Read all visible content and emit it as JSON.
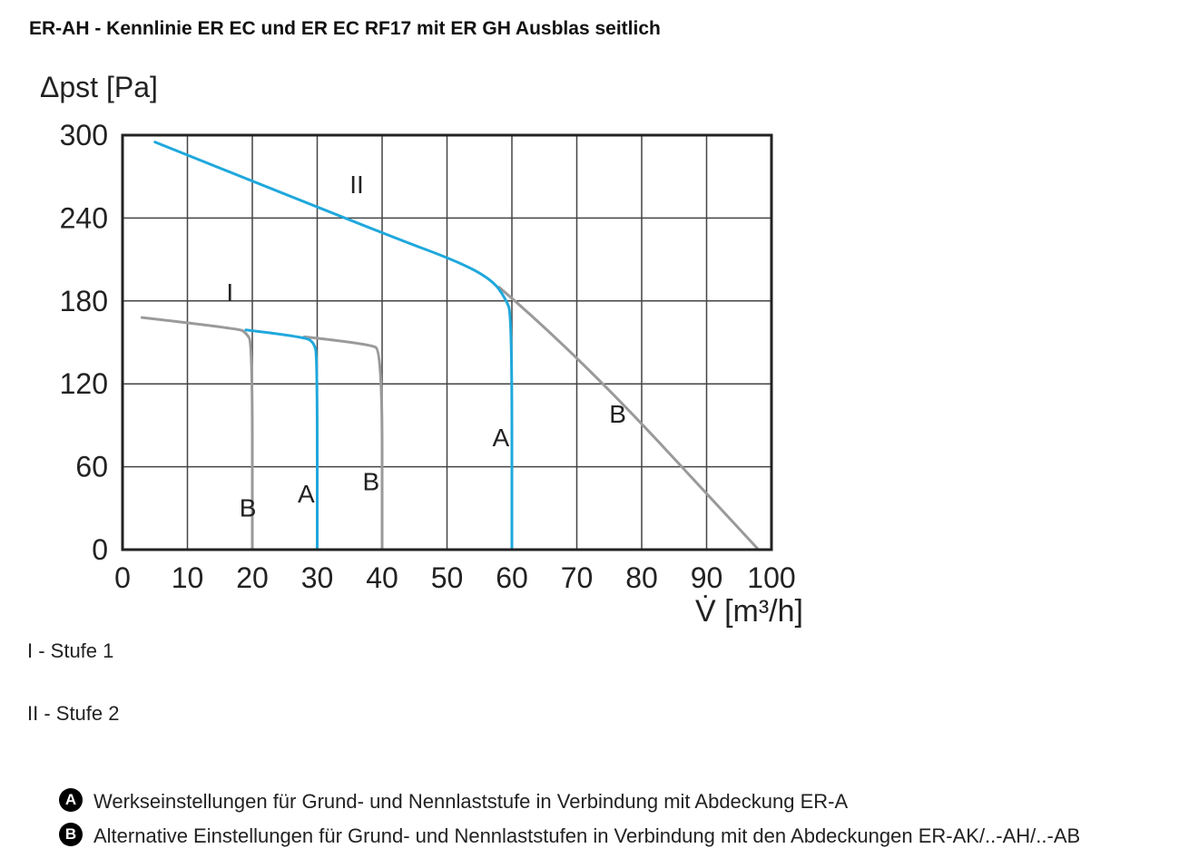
{
  "title": "ER-AH - Kennlinie ER EC und ER EC RF17 mit ER GH Ausblas seitlich",
  "chart_data": {
    "type": "line",
    "ylabel": "Δpst [Pa]",
    "xlabel": "V̇ [m³/h]",
    "xlim": [
      0,
      100
    ],
    "ylim": [
      0,
      300
    ],
    "xticks": [
      "0",
      "10",
      "20",
      "30",
      "40",
      "50",
      "60",
      "70",
      "80",
      "90",
      "100"
    ],
    "yticks": [
      "0",
      "60",
      "120",
      "180",
      "240",
      "300"
    ],
    "grid": true,
    "colors": {
      "A": "#1fa8dc",
      "B": "#9a9a9a"
    },
    "series": [
      {
        "curve": "I",
        "setting": "B",
        "color": "#9a9a9a",
        "points": [
          [
            3,
            168
          ],
          [
            18,
            160
          ],
          [
            19,
            157
          ],
          [
            20,
            150
          ],
          [
            20,
            0
          ]
        ]
      },
      {
        "curve": "I",
        "setting": "A",
        "color": "#1fa8dc",
        "points": [
          [
            19,
            159
          ],
          [
            28,
            154
          ],
          [
            29.5,
            150
          ],
          [
            30,
            140
          ],
          [
            30,
            0
          ]
        ]
      },
      {
        "curve": "I",
        "setting": "B",
        "color": "#9a9a9a",
        "points": [
          [
            28,
            154
          ],
          [
            38,
            149
          ],
          [
            40,
            144
          ],
          [
            40,
            0
          ]
        ]
      },
      {
        "curve": "II",
        "setting": "A",
        "color": "#1fa8dc",
        "points": [
          [
            5,
            295
          ],
          [
            40,
            229
          ],
          [
            52,
            208
          ],
          [
            57,
            195
          ],
          [
            59,
            182
          ],
          [
            60,
            170
          ],
          [
            60,
            0
          ]
        ]
      },
      {
        "curve": "II",
        "setting": "B",
        "color": "#9a9a9a",
        "points": [
          [
            58,
            190
          ],
          [
            70,
            142
          ],
          [
            98,
            0
          ]
        ]
      }
    ],
    "curve_labels": [
      {
        "text": "II",
        "x": 35,
        "y": 258
      },
      {
        "text": "I",
        "x": 16,
        "y": 180
      },
      {
        "text": "B",
        "x": 18,
        "y": 24
      },
      {
        "text": "A",
        "x": 27,
        "y": 34
      },
      {
        "text": "B",
        "x": 37,
        "y": 43
      },
      {
        "text": "A",
        "x": 57,
        "y": 75
      },
      {
        "text": "B",
        "x": 75,
        "y": 92
      }
    ]
  },
  "legend": {
    "stufe1": "I - Stufe 1",
    "stufe2": "II - Stufe 2"
  },
  "notes": [
    {
      "badge": "A",
      "text": "Werkseinstellungen für Grund- und Nennlaststufe in Verbindung mit Abdeckung ER-A"
    },
    {
      "badge": "B",
      "text": "Alternative Einstellungen für Grund- und Nennlaststufen in Verbindung mit den Abdeckungen ER-AK/..-AH/..-AB"
    }
  ]
}
